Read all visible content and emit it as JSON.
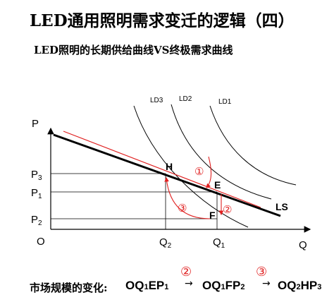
{
  "title": "LED通用照明需求变迁的逻辑（四）",
  "subtitle": "LED照明的长期供给曲线VS终极需求曲线",
  "axes": {
    "y_label": "P",
    "x_label": "Q",
    "origin": "O",
    "y_ticks": [
      "P3",
      "P1",
      "P2"
    ],
    "x_ticks": [
      "Q2",
      "Q1"
    ]
  },
  "curves": {
    "ld3": "LD3",
    "ld2": "LD2",
    "ld1": "LD1",
    "ls": "LS"
  },
  "points": {
    "h": "H",
    "e": "E",
    "f": "F"
  },
  "markers": {
    "one": "①",
    "two": "②",
    "three": "③"
  },
  "formula": {
    "label": "市场规模的变化:",
    "term1": "OQ1EP1",
    "term2": "OQ1FP2",
    "term3": "OQ2HP3",
    "marker2": "②",
    "marker3": "③",
    "arrow": "→"
  },
  "colors": {
    "red": "#e02020",
    "black": "#000000"
  }
}
